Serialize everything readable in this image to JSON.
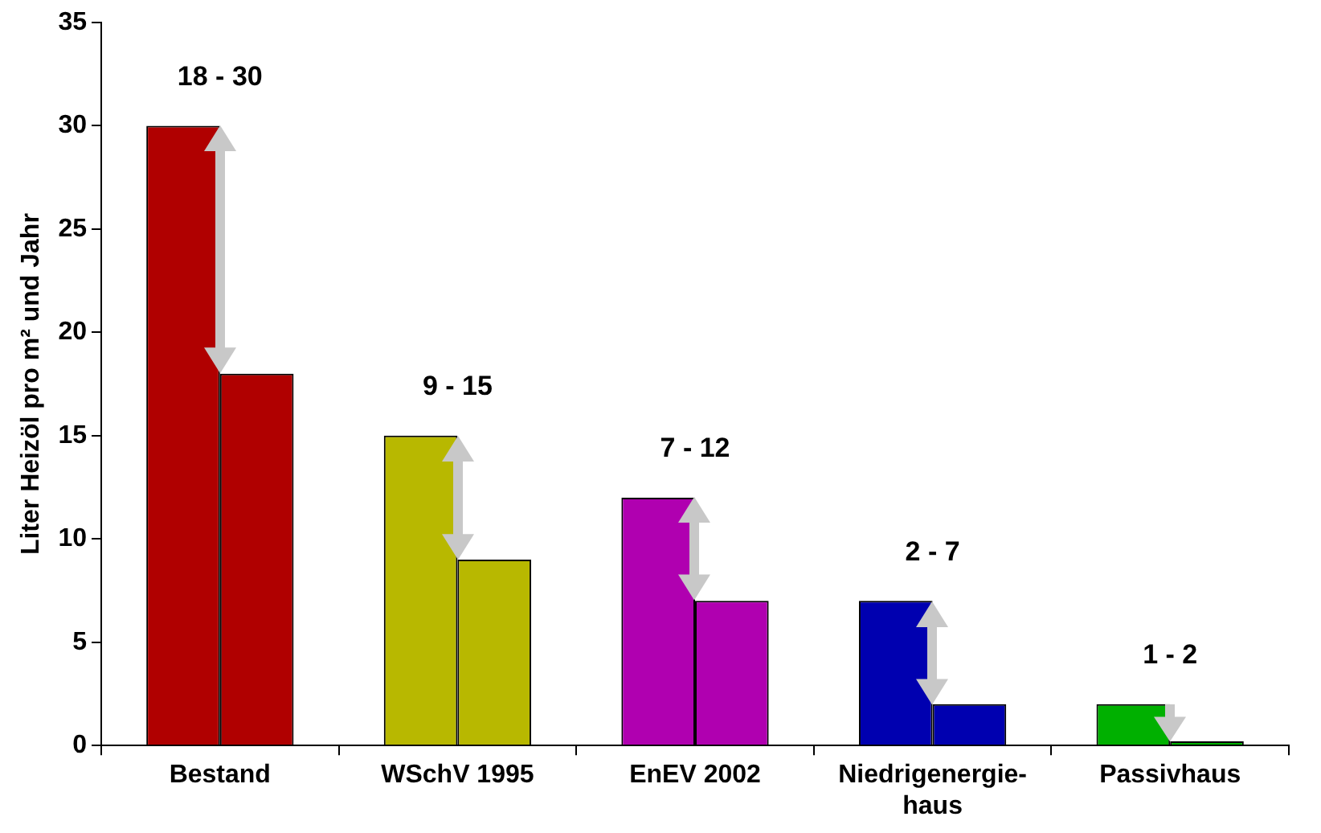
{
  "chart_data": {
    "type": "bar",
    "ylabel": "Liter Heizöl pro m² und Jahr",
    "categories": [
      "Bestand",
      "WSchV 1995",
      "EnEV 2002",
      "Niedrigenergie-\nhaus",
      "Passivhaus"
    ],
    "series": [
      {
        "colors": [
          "#b00000",
          "#b8b800",
          "#b000b0",
          "#0000b0",
          "#00b000"
        ],
        "values": [
          30,
          15,
          12,
          7,
          2
        ]
      },
      {
        "colors": [
          "#b00000",
          "#b8b800",
          "#b000b0",
          "#0000b0",
          "#00b000"
        ],
        "values": [
          18,
          9,
          7,
          2,
          0.2
        ]
      }
    ],
    "ylim": [
      0,
      35
    ],
    "yticks": [
      0,
      5,
      10,
      15,
      20,
      25,
      30,
      35
    ],
    "grid": false,
    "legend": false,
    "annotations": [
      "18 - 30",
      "9 - 15",
      "7 - 12",
      "2 - 7",
      "1 - 2"
    ]
  }
}
